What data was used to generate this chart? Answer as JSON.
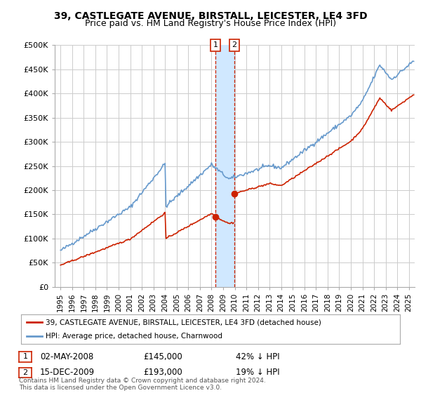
{
  "title": "39, CASTLEGATE AVENUE, BIRSTALL, LEICESTER, LE4 3FD",
  "subtitle": "Price paid vs. HM Land Registry's House Price Index (HPI)",
  "background_color": "#ffffff",
  "grid_color": "#cccccc",
  "sale1_date": 2008.33,
  "sale1_price": 145000,
  "sale2_date": 2009.96,
  "sale2_price": 193000,
  "legend_line1": "39, CASTLEGATE AVENUE, BIRSTALL, LEICESTER, LE4 3FD (detached house)",
  "legend_line2": "HPI: Average price, detached house, Charnwood",
  "table_row1": [
    "1",
    "02-MAY-2008",
    "£145,000",
    "42% ↓ HPI"
  ],
  "table_row2": [
    "2",
    "15-DEC-2009",
    "£193,000",
    "19% ↓ HPI"
  ],
  "footnote": "Contains HM Land Registry data © Crown copyright and database right 2024.\nThis data is licensed under the Open Government Licence v3.0.",
  "hpi_color": "#6699cc",
  "price_color": "#cc2200",
  "highlight_color": "#d0e8ff",
  "ylim": [
    0,
    500000
  ],
  "ytick_vals": [
    0,
    50000,
    100000,
    150000,
    200000,
    250000,
    300000,
    350000,
    400000,
    450000,
    500000
  ],
  "ytick_labels": [
    "£0",
    "£50K",
    "£100K",
    "£150K",
    "£200K",
    "£250K",
    "£300K",
    "£350K",
    "£400K",
    "£450K",
    "£500K"
  ],
  "xlim_start": 1994.5,
  "xlim_end": 2025.5
}
